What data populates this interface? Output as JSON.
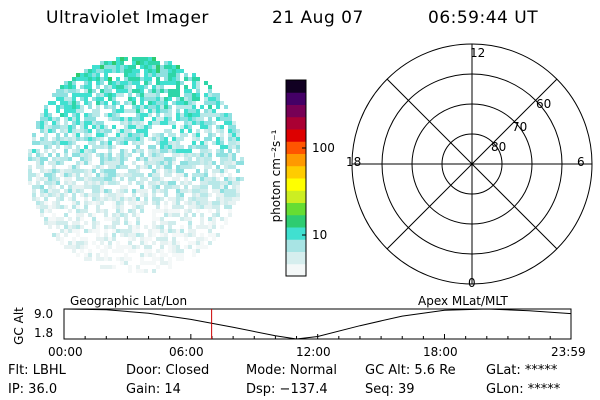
{
  "header": {
    "instrument": "Ultraviolet Imager",
    "date": "21 Aug 07",
    "time": "06:59:44 UT"
  },
  "colorbar": {
    "unit_label": "photon cm⁻²s⁻¹",
    "ticks": [
      {
        "label": "100",
        "value": 100
      },
      {
        "label": "10",
        "value": 10
      }
    ],
    "colors": [
      "#f4f8f8",
      "#d6eeee",
      "#a8e4e4",
      "#40e0d0",
      "#2ecc71",
      "#66dd33",
      "#ccee22",
      "#ffff00",
      "#ffcc00",
      "#ff9900",
      "#ff5500",
      "#dd0000",
      "#aa0033",
      "#770055",
      "#440066",
      "#110022"
    ]
  },
  "polar_grid": {
    "mlt_labels": [
      "12",
      "18",
      "6",
      "0"
    ],
    "lat_labels": [
      "60",
      "70",
      "80"
    ]
  },
  "altitude_plot": {
    "ylabel": "GC Alt",
    "yticks": [
      "9.0",
      "1.8"
    ],
    "left_title": "Geographic Lat/Lon",
    "right_title": "Apex MLat/MLT",
    "xticks": [
      "00:00",
      "06:00",
      "12:00",
      "18:00",
      "23:59"
    ],
    "marker_time": "06:59:44",
    "marker_color": "#cc0000"
  },
  "footer": {
    "flt": "Flt: LBHL",
    "ip": "IP: 36.0",
    "door": "Door: Closed",
    "gain": "Gain: 14",
    "mode": "Mode: Normal",
    "dsp": "Dsp: −137.4",
    "gc_alt": "GC Alt: 5.6 Re",
    "seq": "Seq: 39",
    "glat": "GLat: *****",
    "glon": "GLon: *****"
  },
  "chart_data": {
    "type": "line",
    "x": [
      "00:00",
      "02:00",
      "04:00",
      "06:00",
      "08:00",
      "10:00",
      "11:00",
      "12:00",
      "14:00",
      "16:00",
      "18:00",
      "20:00",
      "22:00",
      "23:59"
    ],
    "series": [
      {
        "values": [
          9.0,
          8.8,
          8.0,
          6.5,
          4.6,
          2.6,
          1.8,
          2.4,
          5.0,
          7.3,
          8.7,
          9.0,
          8.6,
          7.9
        ]
      }
    ],
    "xlabel": "",
    "ylabel": "GC Alt",
    "ylim": [
      1.8,
      9.0
    ],
    "xlim": [
      "00:00",
      "23:59"
    ]
  }
}
